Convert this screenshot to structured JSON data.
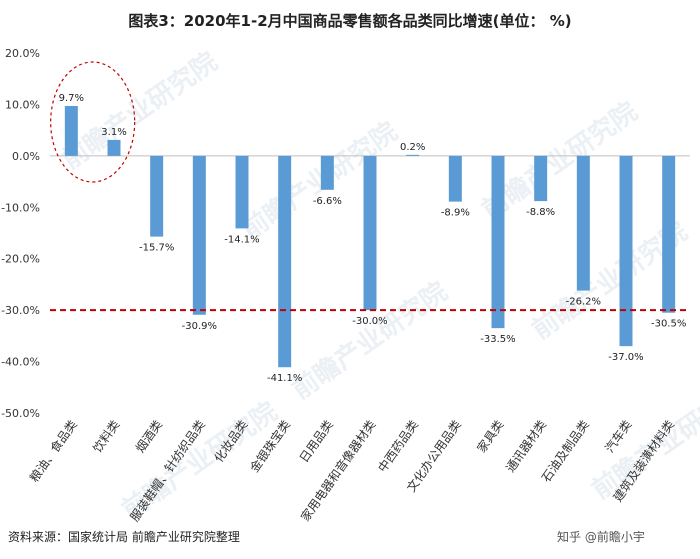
{
  "title": "图表3：2020年1-2月中国商品零售额各品类同比增速(单位： %)",
  "source": "资料来源：国家统计局 前瞻产业研究院整理",
  "watermark": "前瞻产业研究院",
  "corner_text": "知乎 @前瞻小宇",
  "colors": {
    "bar": "#5b9bd5",
    "threshold": "#c00000",
    "highlight": "#c00000",
    "grid": "#d9d9d9"
  },
  "chart_data": {
    "type": "bar",
    "title": "图表3：2020年1-2月中国商品零售额各品类同比增速(单位： %)",
    "categories": [
      "粮油、食品类",
      "饮料类",
      "烟酒类",
      "服装鞋帽、针纺织品类",
      "化妆品类",
      "金银珠宝类",
      "日用品类",
      "家用电器和音像器材类",
      "中西药品类",
      "文化办公用品类",
      "家具类",
      "通讯器材类",
      "石油及制品类",
      "汽车类",
      "建筑及装潢材料类"
    ],
    "series": [
      {
        "values": [
          9.7,
          3.1,
          -15.7,
          -30.9,
          -14.1,
          -41.1,
          -6.6,
          -30.0,
          0.2,
          -8.9,
          -33.5,
          -8.8,
          -26.2,
          -37.0,
          -30.5
        ]
      }
    ],
    "data_labels": [
      "9.7%",
      "3.1%",
      "-15.7%",
      "-30.9%",
      "-14.1%",
      "-41.1%",
      "-6.6%",
      "-30.0%",
      "0.2%",
      "-8.9%",
      "-33.5%",
      "-8.8%",
      "-26.2%",
      "-37.0%",
      "-30.5%"
    ],
    "yticks": [
      "20.0%",
      "10.0%",
      "0.0%",
      "-10.0%",
      "-20.0%",
      "-30.0%",
      "-40.0%",
      "-50.0%"
    ],
    "ylim": [
      -50,
      20
    ],
    "reference_line": -30,
    "highlighted_categories": [
      "粮油、食品类",
      "饮料类"
    ],
    "grid": false,
    "legend": "none"
  }
}
